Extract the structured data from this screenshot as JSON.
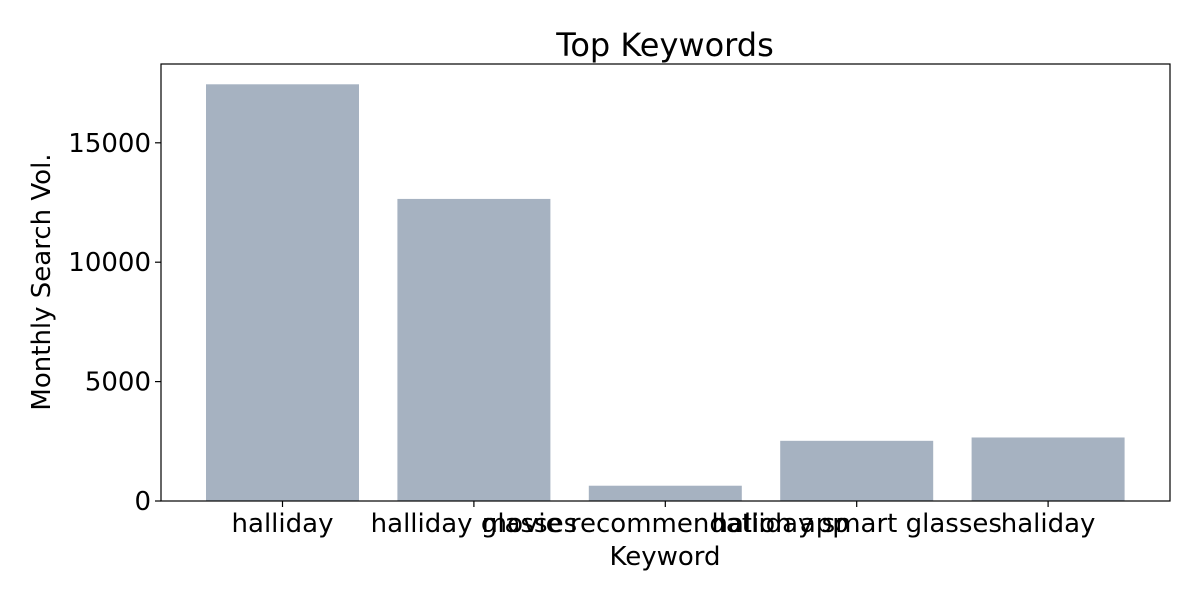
{
  "chart_data": {
    "type": "bar",
    "title": "Top Keywords",
    "xlabel": "Keyword",
    "ylabel": "Monthly Search Vol.",
    "categories": [
      "halliday",
      "halliday glasses",
      "movie recommendation app",
      "halliday smart glasses",
      "haliday"
    ],
    "values": [
      17450,
      12650,
      640,
      2520,
      2660
    ],
    "ylim": [
      0,
      18300
    ],
    "yticks": [
      0,
      5000,
      10000,
      15000
    ],
    "grid": false,
    "colors": {
      "bar": "#a6b2c1",
      "axis": "#000000"
    }
  }
}
